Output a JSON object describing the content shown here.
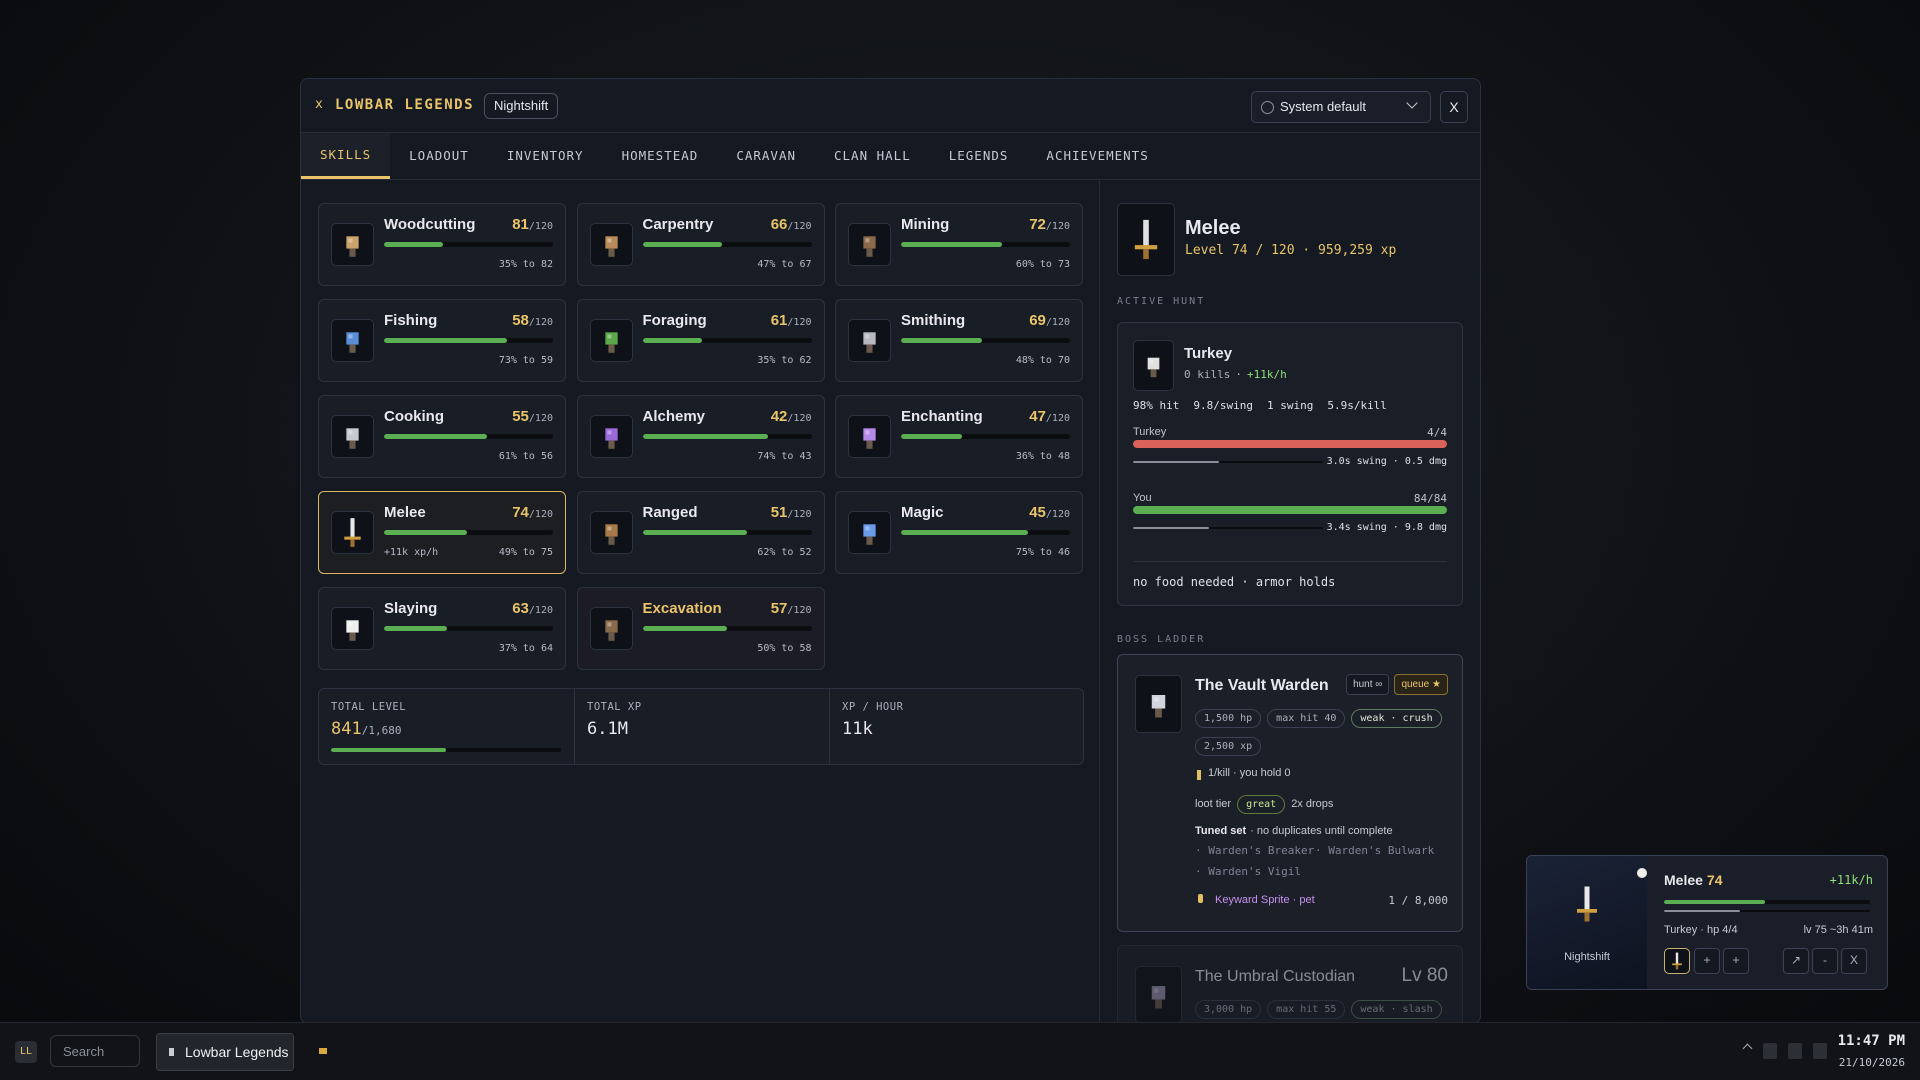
{
  "window": {
    "mark": "x",
    "title": "LOWBAR LEGENDS",
    "profile": "Nightshift",
    "theme": "System default",
    "close": "X"
  },
  "tabs": [
    "SKILLS",
    "LOADOUT",
    "INVENTORY",
    "HOMESTEAD",
    "CARAVAN",
    "CLAN HALL",
    "LEGENDS",
    "ACHIEVEMENTS"
  ],
  "active_tab": "SKILLS",
  "skills": [
    {
      "name": "Woodcutting",
      "level": 81,
      "max": "/120",
      "progress": 35,
      "progress_label": "35% to 82"
    },
    {
      "name": "Carpentry",
      "level": 66,
      "max": "/120",
      "progress": 47,
      "progress_label": "47% to 67"
    },
    {
      "name": "Mining",
      "level": 72,
      "max": "/120",
      "progress": 60,
      "progress_label": "60% to 73"
    },
    {
      "name": "Fishing",
      "level": 58,
      "max": "/120",
      "progress": 73,
      "progress_label": "73% to 59"
    },
    {
      "name": "Foraging",
      "level": 61,
      "max": "/120",
      "progress": 35,
      "progress_label": "35% to 62"
    },
    {
      "name": "Smithing",
      "level": 69,
      "max": "/120",
      "progress": 48,
      "progress_label": "48% to 70"
    },
    {
      "name": "Cooking",
      "level": 55,
      "max": "/120",
      "progress": 61,
      "progress_label": "61% to 56"
    },
    {
      "name": "Alchemy",
      "level": 42,
      "max": "/120",
      "progress": 74,
      "progress_label": "74% to 43"
    },
    {
      "name": "Enchanting",
      "level": 47,
      "max": "/120",
      "progress": 36,
      "progress_label": "36% to 48"
    },
    {
      "name": "Melee",
      "level": 74,
      "max": "/120",
      "progress": 49,
      "progress_label": "49% to 75",
      "rate": "+11k xp/h",
      "selected": true
    },
    {
      "name": "Ranged",
      "level": 51,
      "max": "/120",
      "progress": 62,
      "progress_label": "62% to 52"
    },
    {
      "name": "Magic",
      "level": 45,
      "max": "/120",
      "progress": 75,
      "progress_label": "75% to 46"
    },
    {
      "name": "Slaying",
      "level": 63,
      "max": "/120",
      "progress": 37,
      "progress_label": "37% to 64"
    },
    {
      "name": "Excavation",
      "level": 57,
      "max": "/120",
      "progress": 50,
      "progress_label": "50% to 58",
      "highlight": true
    }
  ],
  "totals": [
    {
      "label": "TOTAL LEVEL",
      "value": 841,
      "max": "/1,680",
      "progress": 50
    },
    {
      "label": "TOTAL XP",
      "value": "6.1M"
    },
    {
      "label": "XP / HOUR",
      "value": "11k"
    }
  ],
  "detail": {
    "name": "Melee",
    "summary": "Level 74 / 120 · 959,259 xp",
    "active_hunt_label": "ACTIVE HUNT",
    "hunt": {
      "target": "Turkey",
      "kills": "0 kills",
      "rate": "+11k/h",
      "stats": [
        "98% hit",
        "9.8/swing",
        "1 swing",
        "5.9s/kill"
      ],
      "combatants": [
        {
          "name": "Turkey",
          "hp": "4/4",
          "hp_pct": 100,
          "timer": 45,
          "info": "3.0s swing · 0.5 dmg",
          "color": "#d9625b"
        },
        {
          "name": "You",
          "hp": "84/84",
          "hp_pct": 100,
          "timer": 40,
          "info": "3.4s swing · 9.8 dmg",
          "color": "#5cae52"
        }
      ],
      "footer": "no food needed · armor holds"
    },
    "boss_ladder_label": "BOSS LADDER",
    "bosses": [
      {
        "name": "The Vault Warden",
        "actions": [
          "hunt ∞",
          "queue ★"
        ],
        "tags": [
          "1,500 hp",
          "max hit 40",
          "weak · crush",
          "2,500 xp"
        ],
        "key": "1/kill · you hold 0",
        "loot_label": "loot tier",
        "loot_tier": "great",
        "drops": "2x drops",
        "set_label": "Tuned set",
        "set_note": "· no duplicates until complete",
        "set_items": [
          "Warden's Breaker",
          "Warden's Bulwark",
          "Warden's Vigil"
        ],
        "pet": "Keyward Sprite · pet",
        "pet_odds": "1 / 8,000"
      },
      {
        "name": "The Umbral Custodian",
        "level": "Lv 80",
        "tags": [
          "3,000 hp",
          "max hit 55",
          "weak · slash"
        ]
      }
    ]
  },
  "widget": {
    "skill": "Melee",
    "level": 74,
    "rate": "+11k/h",
    "profile": "Nightshift",
    "progress": 49,
    "sub_progress": 37,
    "target": "Turkey · hp 4/4",
    "eta": "lv 75 ~3h 41m",
    "buttons": [
      "+",
      "+",
      "↗",
      "-",
      "X"
    ]
  },
  "taskbar": {
    "logo": "LL",
    "search": "Search",
    "app": "Lowbar Legends",
    "time": "11:47 PM",
    "date": "21/10/2026"
  }
}
